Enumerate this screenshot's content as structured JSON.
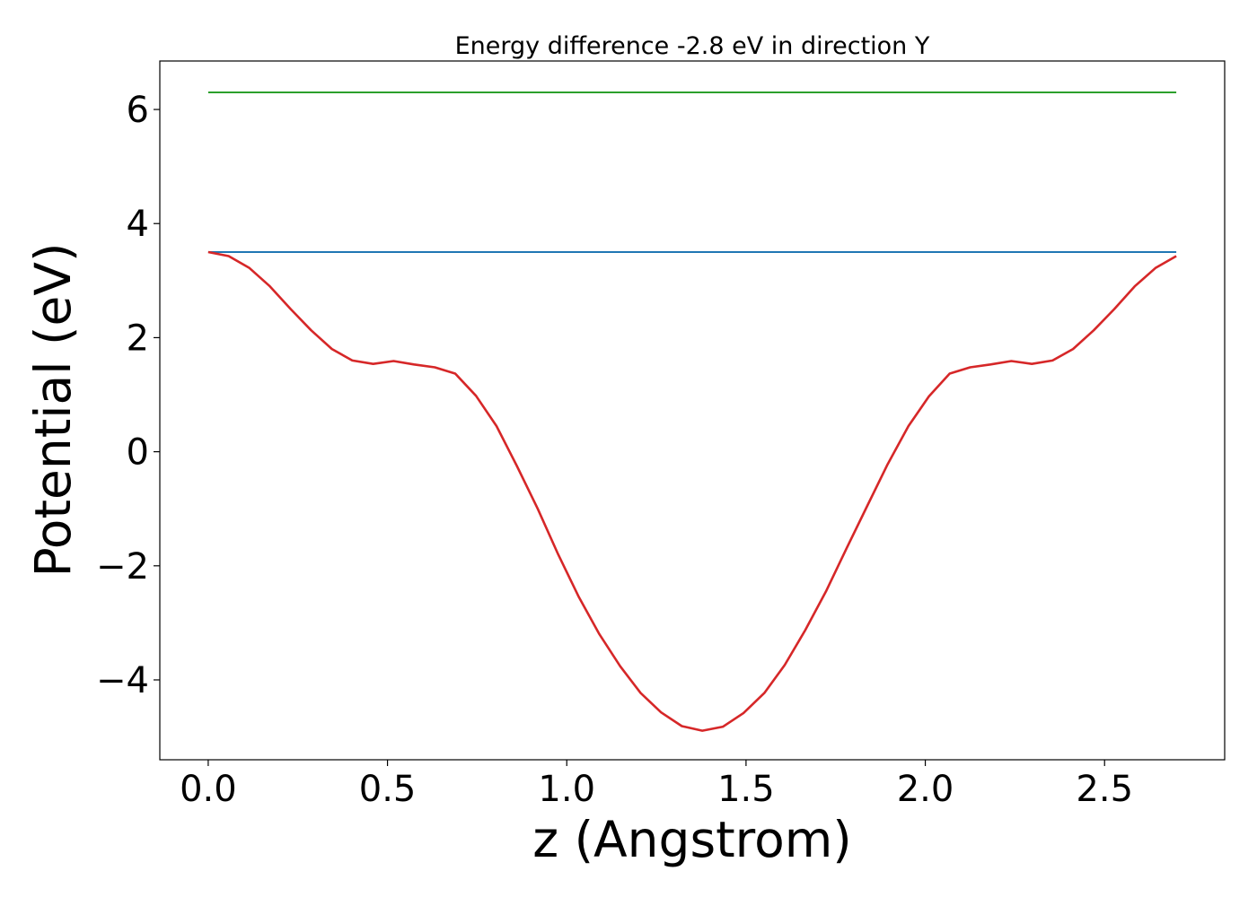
{
  "chart_data": {
    "type": "line",
    "title": "Energy difference -2.8 eV in direction Y",
    "xlabel": "z (Angstrom)",
    "ylabel": "Potential (eV)",
    "xlim": [
      -0.135,
      2.835
    ],
    "ylim": [
      -5.4,
      6.85
    ],
    "x_ticks": [
      0.0,
      0.5,
      1.0,
      1.5,
      2.0,
      2.5
    ],
    "x_tick_labels": [
      "0.0",
      "0.5",
      "1.0",
      "1.5",
      "2.0",
      "2.5"
    ],
    "y_ticks": [
      -4,
      -2,
      0,
      2,
      4,
      6
    ],
    "y_tick_labels": [
      "−4",
      "−2",
      "0",
      "2",
      "4",
      "6"
    ],
    "grid": false,
    "series": [
      {
        "color": "#2ca02c",
        "x": [
          0.0,
          2.7
        ],
        "y": [
          6.3,
          6.3
        ]
      },
      {
        "color": "#1f77b4",
        "x": [
          0.0,
          2.7
        ],
        "y": [
          3.5,
          3.5
        ]
      },
      {
        "color": "#d62728",
        "x": [
          0.0,
          0.057,
          0.115,
          0.172,
          0.23,
          0.287,
          0.345,
          0.402,
          0.46,
          0.517,
          0.574,
          0.632,
          0.689,
          0.747,
          0.804,
          0.861,
          0.919,
          0.976,
          1.034,
          1.091,
          1.149,
          1.206,
          1.263,
          1.321,
          1.378,
          1.436,
          1.493,
          1.551,
          1.608,
          1.665,
          1.723,
          1.78,
          1.838,
          1.895,
          1.953,
          2.01,
          2.068,
          2.125,
          2.182,
          2.24,
          2.297,
          2.355,
          2.412,
          2.47,
          2.527,
          2.584,
          2.642,
          2.7
        ],
        "y": [
          3.5,
          3.43,
          3.22,
          2.9,
          2.5,
          2.13,
          1.8,
          1.6,
          1.54,
          1.59,
          1.53,
          1.48,
          1.37,
          0.98,
          0.45,
          -0.25,
          -1.0,
          -1.8,
          -2.55,
          -3.2,
          -3.76,
          -4.23,
          -4.57,
          -4.81,
          -4.89,
          -4.82,
          -4.58,
          -4.23,
          -3.74,
          -3.13,
          -2.45,
          -1.7,
          -0.95,
          -0.22,
          0.45,
          0.97,
          1.37,
          1.48,
          1.53,
          1.59,
          1.54,
          1.6,
          1.8,
          2.13,
          2.5,
          2.9,
          3.22,
          3.43
        ]
      }
    ]
  }
}
